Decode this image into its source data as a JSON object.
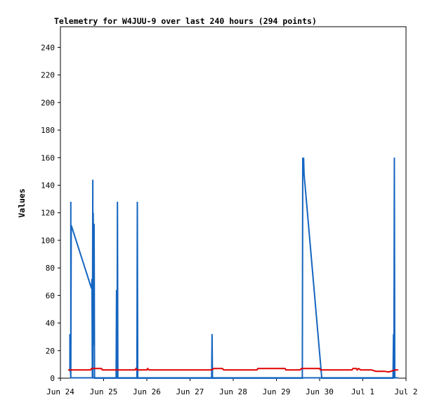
{
  "chart_data": {
    "type": "line",
    "title": "Telemetry for W4JUU-9 over last 240 hours (294 points)",
    "xlabel": "",
    "ylabel": "Values",
    "x_ticks": [
      "Jun 24",
      "Jun 25",
      "Jun 26",
      "Jun 27",
      "Jun 28",
      "Jun 29",
      "Jun 30",
      "Jul 1",
      "Jul 2"
    ],
    "xlim": [
      0,
      8
    ],
    "ylim": [
      0,
      255
    ],
    "y_ticks": [
      0,
      20,
      40,
      60,
      80,
      100,
      120,
      140,
      160,
      180,
      200,
      220,
      240
    ],
    "grid": false,
    "legend": "none",
    "x_units": "days since Jun 24 00:00",
    "series": [
      {
        "color": "#1565c0",
        "points": [
          [
            0.22,
            5
          ],
          [
            0.22,
            32
          ],
          [
            0.22,
            15
          ],
          [
            0.24,
            0
          ],
          [
            0.24,
            128
          ],
          [
            0.24,
            0
          ],
          [
            0.25,
            111
          ],
          [
            0.72,
            65
          ],
          [
            0.73,
            72
          ],
          [
            0.74,
            0
          ],
          [
            0.75,
            144
          ],
          [
            0.75,
            0
          ],
          [
            0.76,
            120
          ],
          [
            0.77,
            24
          ],
          [
            0.78,
            112
          ],
          [
            0.79,
            0
          ],
          [
            1.29,
            0
          ],
          [
            1.3,
            64
          ],
          [
            1.31,
            0
          ],
          [
            1.32,
            128
          ],
          [
            1.33,
            0
          ],
          [
            1.77,
            0
          ],
          [
            1.78,
            128
          ],
          [
            1.79,
            0
          ],
          [
            3.5,
            0
          ],
          [
            3.51,
            32
          ],
          [
            3.52,
            0
          ],
          [
            5.6,
            0
          ],
          [
            5.61,
            160
          ],
          [
            5.62,
            150
          ],
          [
            5.63,
            160
          ],
          [
            5.64,
            148
          ],
          [
            6.05,
            0
          ],
          [
            7.7,
            0
          ],
          [
            7.71,
            32
          ],
          [
            7.72,
            0
          ],
          [
            7.73,
            160
          ],
          [
            7.74,
            0
          ]
        ]
      },
      {
        "color": "#e00000",
        "points": [
          [
            0.18,
            6
          ],
          [
            0.7,
            6
          ],
          [
            0.72,
            7
          ],
          [
            0.95,
            7
          ],
          [
            0.97,
            6
          ],
          [
            1.73,
            6
          ],
          [
            1.75,
            7
          ],
          [
            1.77,
            6
          ],
          [
            2.0,
            6
          ],
          [
            2.02,
            7
          ],
          [
            2.05,
            6
          ],
          [
            3.5,
            6
          ],
          [
            3.55,
            7
          ],
          [
            3.75,
            7
          ],
          [
            3.78,
            6
          ],
          [
            4.55,
            6
          ],
          [
            4.57,
            7
          ],
          [
            5.2,
            7
          ],
          [
            5.22,
            6
          ],
          [
            5.55,
            6
          ],
          [
            5.58,
            7
          ],
          [
            6.0,
            7
          ],
          [
            6.02,
            6
          ],
          [
            6.75,
            6
          ],
          [
            6.77,
            7
          ],
          [
            6.85,
            7
          ],
          [
            6.87,
            6
          ],
          [
            6.9,
            7
          ],
          [
            6.95,
            6
          ],
          [
            7.2,
            6
          ],
          [
            7.3,
            5
          ],
          [
            7.5,
            5
          ],
          [
            7.6,
            4.5
          ],
          [
            7.75,
            6
          ],
          [
            7.82,
            6
          ]
        ]
      }
    ]
  }
}
